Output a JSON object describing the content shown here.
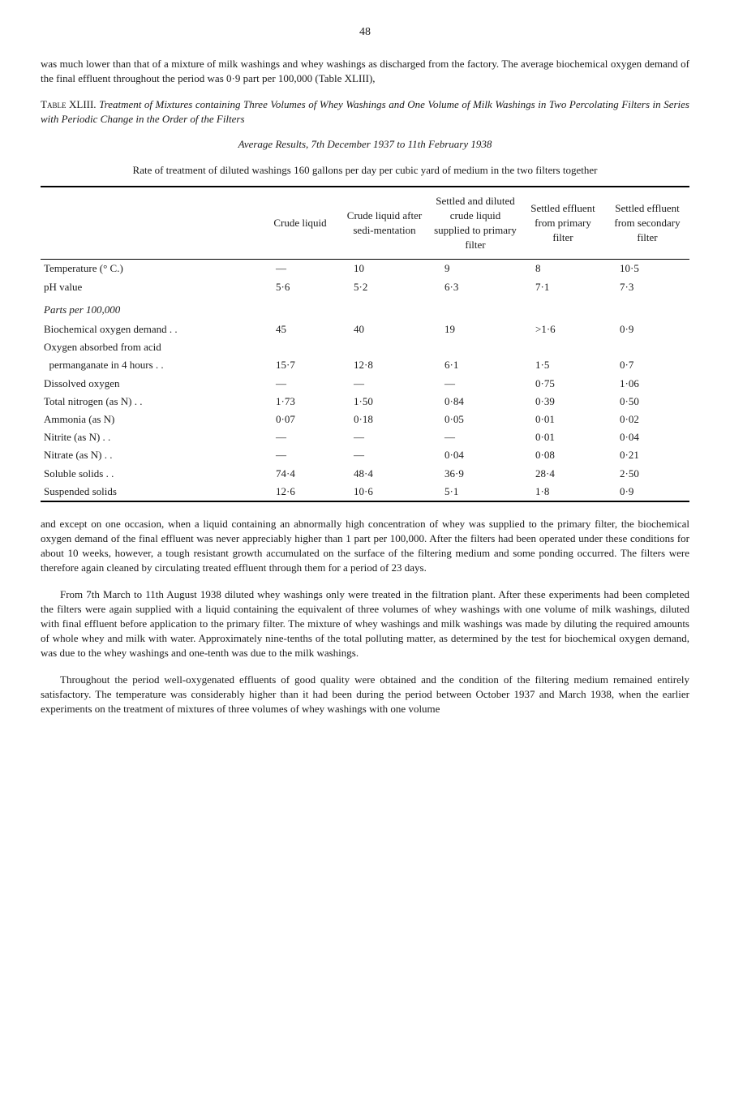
{
  "page_number": "48",
  "intro": "was much lower than that of a mixture of milk washings and whey washings as discharged from the factory. The average biochemical oxygen demand of the final effluent throughout the period was 0·9 part per 100,000 (Table XLIII),",
  "table_heading_lead": "Table XLIII.",
  "table_heading_rest": " Treatment of Mixtures containing Three Volumes of Whey Washings and One Volume of Milk Washings in Two Percolating Filters in Series with Periodic Change in the Order of the Filters",
  "table_subtitle": "Average Results, 7th December 1937 to 11th February 1938",
  "table_note": "Rate of treatment of diluted washings 160 gallons per day per cubic yard of medium in the two filters together",
  "columns": [
    "",
    "Crude liquid",
    "Crude liquid after sedi-mentation",
    "Settled and diluted crude liquid supplied to primary filter",
    "Settled effluent from primary filter",
    "Settled effluent from secondary filter"
  ],
  "rows_top": [
    {
      "label": "Temperature (° C.)",
      "c1": "—",
      "c2": "10",
      "c3": "9",
      "c4": "8",
      "c5": "10·5"
    },
    {
      "label": "pH value",
      "c1": "5·6",
      "c2": "5·2",
      "c3": "6·3",
      "c4": "7·1",
      "c5": "7·3"
    }
  ],
  "section_title": "Parts per 100,000",
  "rows_section": [
    {
      "label": "Biochemical oxygen demand . .",
      "c1": "45",
      "c2": "40",
      "c3": "19",
      "c4": ">1·6",
      "c5": "0·9"
    },
    {
      "label": "Oxygen absorbed from acid",
      "c1": "",
      "c2": "",
      "c3": "",
      "c4": "",
      "c5": ""
    },
    {
      "label": "  permanganate in 4 hours . .",
      "c1": "15·7",
      "c2": "12·8",
      "c3": "6·1",
      "c4": "1·5",
      "c5": "0·7"
    },
    {
      "label": "Dissolved oxygen",
      "c1": "—",
      "c2": "—",
      "c3": "—",
      "c4": "0·75",
      "c5": "1·06"
    },
    {
      "label": "Total nitrogen (as N) . .",
      "c1": "1·73",
      "c2": "1·50",
      "c3": "0·84",
      "c4": "0·39",
      "c5": "0·50"
    },
    {
      "label": "Ammonia (as N)",
      "c1": "0·07",
      "c2": "0·18",
      "c3": "0·05",
      "c4": "0·01",
      "c5": "0·02"
    },
    {
      "label": "Nitrite (as N) . .",
      "c1": "—",
      "c2": "—",
      "c3": "—",
      "c4": "0·01",
      "c5": "0·04"
    },
    {
      "label": "Nitrate (as N) . .",
      "c1": "—",
      "c2": "—",
      "c3": "0·04",
      "c4": "0·08",
      "c5": "0·21"
    },
    {
      "label": "Soluble solids . .",
      "c1": "74·4",
      "c2": "48·4",
      "c3": "36·9",
      "c4": "28·4",
      "c5": "2·50"
    },
    {
      "label": "Suspended solids",
      "c1": "12·6",
      "c2": "10·6",
      "c3": "5·1",
      "c4": "1·8",
      "c5": "0·9"
    }
  ],
  "para1": "and except on one occasion, when a liquid containing an abnormally high concentration of whey was supplied to the primary filter, the biochemical oxygen demand of the final effluent was never appreciably higher than 1 part per 100,000. After the filters had been operated under these conditions for about 10 weeks, however, a tough resistant growth accumulated on the surface of the filtering medium and some ponding occurred. The filters were therefore again cleaned by circulating treated effluent through them for a period of 23 days.",
  "para2": "From 7th March to 11th August 1938 diluted whey washings only were treated in the filtration plant. After these experiments had been completed the filters were again supplied with a liquid containing the equivalent of three volumes of whey washings with one volume of milk washings, diluted with final effluent before application to the primary filter. The mixture of whey washings and milk washings was made by diluting the required amounts of whole whey and milk with water. Approximately nine-tenths of the total polluting matter, as determined by the test for biochemical oxygen demand, was due to the whey washings and one-tenth was due to the milk washings.",
  "para3": "Throughout the period well-oxygenated effluents of good quality were obtained and the condition of the filtering medium remained entirely satisfactory. The temperature was considerably higher than it had been during the period between October 1937 and March 1938, when the earlier experiments on the treatment of mixtures of three volumes of whey washings with one volume",
  "table_style": {
    "col_widths": [
      "34%",
      "12%",
      "14%",
      "14%",
      "13%",
      "13%"
    ],
    "border_color": "#000000",
    "header_fontsize": 12,
    "cell_fontsize": 12
  }
}
